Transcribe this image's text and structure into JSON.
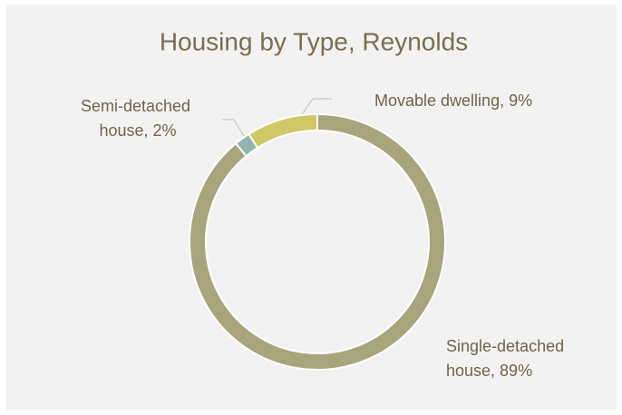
{
  "chart_data": {
    "type": "donut",
    "title": "Housing by Type, Reynolds",
    "values": [
      89,
      2,
      9
    ],
    "value_labels": [
      "Single-detached house, 89%",
      "Semi-detached house, 2%",
      "Movable dwelling, 9%"
    ],
    "colors": [
      "#a8a57d",
      "#93b4b1",
      "#cfc866"
    ]
  }
}
